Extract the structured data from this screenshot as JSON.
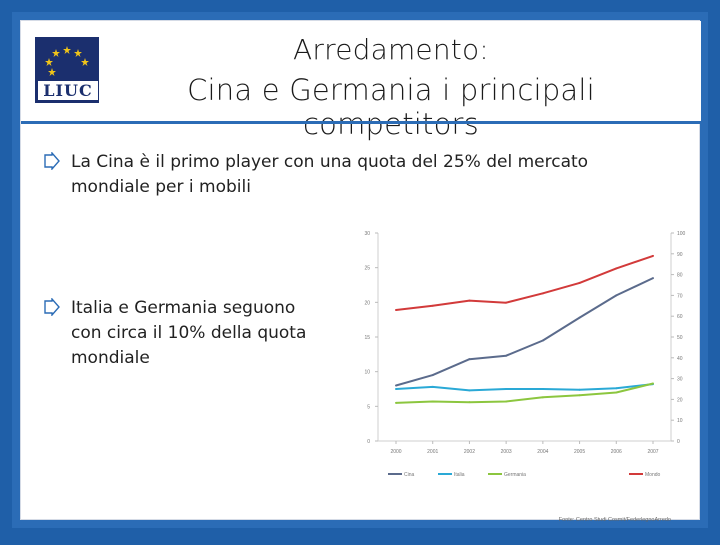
{
  "slide": {
    "title_line1": "Arredamento:",
    "title_line2": "Cina e Germania i principali competitors",
    "logo_text": "LIUC",
    "bullets": [
      "La Cina è il primo player con una quota del 25% del mercato mondiale per i mobili",
      "Italia e Germania seguono con circa il 10% della quota mondiale"
    ],
    "colors": {
      "frame": "#2b6cb6",
      "title_rule": "#2b6cb6",
      "bullet_arrow": "#2b6cb6",
      "logo": "#1b2f6e"
    }
  },
  "chart_data": {
    "type": "line",
    "x": [
      "2000",
      "2001",
      "2002",
      "2003",
      "2004",
      "2005",
      "2006",
      "2007"
    ],
    "left_axis": {
      "ylim": [
        0,
        30
      ],
      "ticks": [
        "0",
        "5",
        "10",
        "15",
        "20",
        "25",
        "30"
      ]
    },
    "right_axis": {
      "ylim": [
        0,
        100
      ],
      "ticks": [
        "0",
        "10",
        "20",
        "30",
        "40",
        "50",
        "60",
        "70",
        "80",
        "90",
        "100"
      ]
    },
    "series": [
      {
        "name": "Cina",
        "axis": "left",
        "color": "#5b6b8c",
        "values": [
          8,
          9.5,
          11.8,
          12.3,
          14.5,
          17.8,
          21,
          23.5
        ]
      },
      {
        "name": "Italia",
        "axis": "left",
        "color": "#2aa9d6",
        "values": [
          7.5,
          7.8,
          7.3,
          7.5,
          7.5,
          7.4,
          7.6,
          8.2
        ]
      },
      {
        "name": "Germania",
        "axis": "left",
        "color": "#8cc63f",
        "values": [
          5.5,
          5.7,
          5.6,
          5.7,
          6.3,
          6.6,
          7.0,
          8.3
        ]
      },
      {
        "name": "Mondo",
        "axis": "right",
        "color": "#d23a3a",
        "values": [
          63,
          65,
          67.5,
          66.5,
          71,
          76,
          83,
          89
        ]
      }
    ],
    "grid": false,
    "legend": "bottom",
    "source": "Fonte: Centro Studi Cosmit/FederlegnoArredo"
  }
}
